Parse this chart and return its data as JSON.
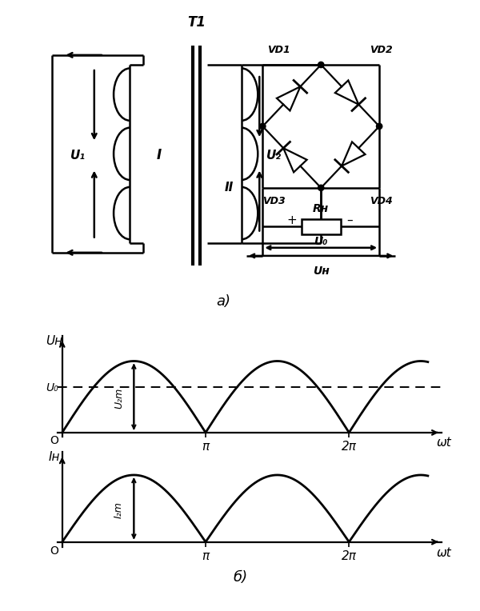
{
  "title_a": "а)",
  "title_b": "б)",
  "T1_label": "T1",
  "VD1_label": "VD1",
  "VD2_label": "VD2",
  "VD3_label": "VD3",
  "VD4_label": "VD4",
  "U1_label": "U₁",
  "U2_label": "U₂",
  "I_label": "I",
  "II_label": "II",
  "RH_label": "Rн",
  "U0_label": "U₀",
  "UH_label": "Uн",
  "UH_axis_label": "Uн",
  "IH_axis_label": "Iн",
  "U0_curve_label": "U₀",
  "U2m_label": "U₂m",
  "I2m_label": "I₂m",
  "wt_label": "ωt",
  "pi_label": "π",
  "two_pi_label": "2π",
  "O_label": "O",
  "background": "#ffffff",
  "line_color": "#000000"
}
